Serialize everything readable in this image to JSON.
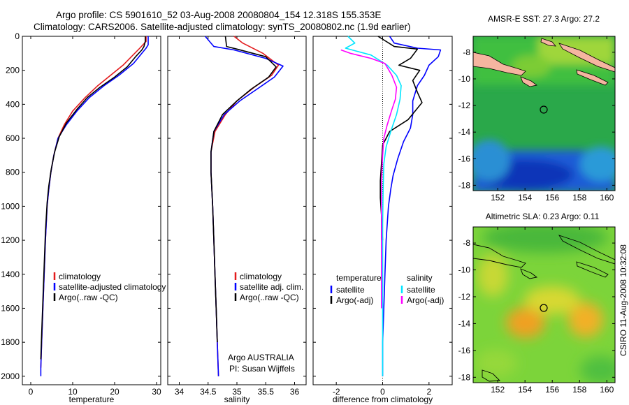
{
  "header": {
    "line1": "Argo profile: CS 5901610_52 03-Aug-2008 20080804_154 12.318S 155.353E",
    "line2": "Climatology: CARS2006. Satellite-adjusted climatology: synTS_20080802.nc (1.9d earlier)"
  },
  "colors": {
    "climatology": "#e31a1c",
    "satellite": "#0000ff",
    "argo": "#000000",
    "sat_salinity": "#00e5ff",
    "argo_salinity": "#ff00ff",
    "land": "#f5b5a0"
  },
  "footer": {
    "stamp": "CSIRO 11-Aug-2008 10:32:08",
    "credit_line1": "Argo AUSTRALIA",
    "credit_line2": "PI: Susan Wijffels"
  },
  "chart_data": [
    {
      "id": "temperature",
      "type": "line",
      "xlabel": "temperature",
      "ylabel": "",
      "xlim": [
        -2,
        31
      ],
      "ylim": [
        2050,
        0
      ],
      "xticks": [
        0,
        10,
        20,
        30
      ],
      "yticks": [
        0,
        200,
        400,
        600,
        800,
        1000,
        1200,
        1400,
        1600,
        1800,
        2000
      ],
      "legend": {
        "position": "lower-right",
        "entries": [
          {
            "label": "climatology",
            "color": "#e31a1c"
          },
          {
            "label": "satellite-adjusted climatology",
            "color": "#0000ff"
          },
          {
            "label": "Argo(..raw -QC)",
            "color": "#000000"
          }
        ]
      },
      "series": [
        {
          "name": "climatology",
          "color": "#e31a1c",
          "points": [
            [
              27.5,
              0
            ],
            [
              27.5,
              30
            ],
            [
              26,
              70
            ],
            [
              24,
              120
            ],
            [
              22,
              170
            ],
            [
              19,
              230
            ],
            [
              16,
              290
            ],
            [
              13,
              360
            ],
            [
              10,
              440
            ],
            [
              8,
              520
            ],
            [
              6.5,
              600
            ],
            [
              5.5,
              700
            ],
            [
              4.8,
              800
            ],
            [
              4.3,
              900
            ],
            [
              3.9,
              1000
            ],
            [
              3.5,
              1200
            ],
            [
              3.2,
              1400
            ],
            [
              2.9,
              1600
            ],
            [
              2.6,
              1800
            ],
            [
              2.4,
              1950
            ]
          ]
        },
        {
          "name": "satellite-adjusted climatology",
          "color": "#0000ff",
          "points": [
            [
              28,
              0
            ],
            [
              28,
              50
            ],
            [
              27.5,
              70
            ],
            [
              26.5,
              100
            ],
            [
              24.5,
              160
            ],
            [
              21,
              230
            ],
            [
              17.5,
              290
            ],
            [
              14,
              360
            ],
            [
              11,
              440
            ],
            [
              8.5,
              520
            ],
            [
              6.5,
              600
            ],
            [
              5.5,
              700
            ],
            [
              4.8,
              800
            ],
            [
              4.3,
              900
            ],
            [
              3.9,
              1000
            ],
            [
              3.5,
              1200
            ],
            [
              3.2,
              1400
            ],
            [
              2.9,
              1600
            ],
            [
              2.6,
              1800
            ],
            [
              2.4,
              1950
            ],
            [
              2.4,
              2000
            ]
          ]
        },
        {
          "name": "Argo",
          "color": "#000000",
          "points": [
            [
              27.3,
              0
            ],
            [
              27.3,
              30
            ],
            [
              27,
              60
            ],
            [
              26.5,
              80
            ],
            [
              25,
              120
            ],
            [
              23,
              180
            ],
            [
              20,
              240
            ],
            [
              16.5,
              300
            ],
            [
              13.5,
              360
            ],
            [
              11,
              430
            ],
            [
              8.5,
              510
            ],
            [
              6.8,
              590
            ],
            [
              5.7,
              680
            ],
            [
              4.9,
              780
            ],
            [
              4.3,
              880
            ],
            [
              3.9,
              980
            ],
            [
              3.5,
              1150
            ],
            [
              3.2,
              1350
            ],
            [
              2.9,
              1550
            ],
            [
              2.6,
              1750
            ],
            [
              2.4,
              1900
            ]
          ]
        }
      ]
    },
    {
      "id": "salinity",
      "type": "line",
      "xlabel": "salinity",
      "ylabel": "",
      "xlim": [
        33.8,
        36.2
      ],
      "ylim": [
        2050,
        0
      ],
      "xticks": [
        34,
        34.5,
        35,
        35.5,
        36
      ],
      "yticks": [
        0,
        200,
        400,
        600,
        800,
        1000,
        1200,
        1400,
        1600,
        1800,
        2000
      ],
      "legend": {
        "position": "lower-right",
        "entries": [
          {
            "label": "climatology",
            "color": "#e31a1c"
          },
          {
            "label": "satellite adj. clim.",
            "color": "#0000ff"
          },
          {
            "label": "Argo(..raw -QC)",
            "color": "#000000"
          }
        ]
      },
      "series": [
        {
          "name": "climatology",
          "color": "#e31a1c",
          "points": [
            [
              34.95,
              0
            ],
            [
              35.1,
              40
            ],
            [
              35.45,
              100
            ],
            [
              35.72,
              170
            ],
            [
              35.6,
              230
            ],
            [
              35.3,
              300
            ],
            [
              35.0,
              380
            ],
            [
              34.8,
              460
            ],
            [
              34.62,
              560
            ],
            [
              34.55,
              680
            ],
            [
              34.55,
              800
            ],
            [
              34.58,
              1000
            ],
            [
              34.6,
              1200
            ],
            [
              34.62,
              1400
            ],
            [
              34.64,
              1600
            ],
            [
              34.66,
              1800
            ],
            [
              34.68,
              2000
            ]
          ]
        },
        {
          "name": "satellite adj. clim.",
          "color": "#0000ff",
          "points": [
            [
              34.45,
              0
            ],
            [
              34.6,
              60
            ],
            [
              34.95,
              80
            ],
            [
              35.5,
              130
            ],
            [
              35.8,
              175
            ],
            [
              35.65,
              240
            ],
            [
              35.35,
              310
            ],
            [
              35.05,
              380
            ],
            [
              34.78,
              460
            ],
            [
              34.6,
              560
            ],
            [
              34.55,
              680
            ],
            [
              34.55,
              800
            ],
            [
              34.58,
              1000
            ],
            [
              34.6,
              1200
            ],
            [
              34.62,
              1400
            ],
            [
              34.64,
              1600
            ],
            [
              34.66,
              1800
            ],
            [
              34.68,
              2000
            ]
          ]
        },
        {
          "name": "Argo",
          "color": "#000000",
          "points": [
            [
              34.8,
              0
            ],
            [
              34.82,
              60
            ],
            [
              35.0,
              75
            ],
            [
              35.5,
              120
            ],
            [
              35.68,
              180
            ],
            [
              35.55,
              240
            ],
            [
              35.25,
              310
            ],
            [
              35.0,
              380
            ],
            [
              34.75,
              460
            ],
            [
              34.6,
              560
            ],
            [
              34.55,
              680
            ],
            [
              34.55,
              800
            ],
            [
              34.58,
              1000
            ],
            [
              34.6,
              1200
            ],
            [
              34.62,
              1400
            ],
            [
              34.64,
              1600
            ],
            [
              34.66,
              1800
            ]
          ]
        }
      ]
    },
    {
      "id": "difference",
      "type": "line",
      "xlabel": "difference from climatology",
      "ylabel": "",
      "xlim": [
        -3,
        3
      ],
      "ylim": [
        2050,
        0
      ],
      "xticks": [
        -2,
        0,
        2
      ],
      "yticks": [
        0,
        200,
        400,
        600,
        800,
        1000,
        1200,
        1400,
        1600,
        1800,
        2000
      ],
      "legend": {
        "position": "lower-center",
        "col1_title": "temperature",
        "col2_title": "salinity",
        "entries": [
          {
            "label": "satellite",
            "color": "#0000ff"
          },
          {
            "label": "Argo(-adj)",
            "color": "#000000"
          },
          {
            "label": "satellite",
            "color": "#00e5ff"
          },
          {
            "label": "Argo(-adj)",
            "color": "#ff00ff"
          }
        ]
      },
      "series": [
        {
          "name": "temperature satellite",
          "color": "#0000ff",
          "points": [
            [
              0.3,
              0
            ],
            [
              0.5,
              40
            ],
            [
              1.5,
              70
            ],
            [
              2.5,
              80
            ],
            [
              2.4,
              120
            ],
            [
              2,
              170
            ],
            [
              1.8,
              230
            ],
            [
              1.5,
              290
            ],
            [
              1.3,
              380
            ],
            [
              1.3,
              460
            ],
            [
              1.2,
              540
            ],
            [
              0.9,
              620
            ],
            [
              0.65,
              720
            ],
            [
              0.45,
              820
            ],
            [
              0.35,
              900
            ],
            [
              0.25,
              1000
            ],
            [
              0.15,
              1200
            ],
            [
              0.1,
              1400
            ],
            [
              0.05,
              1600
            ],
            [
              0,
              1800
            ],
            [
              0,
              2000
            ]
          ]
        },
        {
          "name": "temperature Argo",
          "color": "#000000",
          "points": [
            [
              -0.2,
              0
            ],
            [
              0.5,
              60
            ],
            [
              1.5,
              75
            ],
            [
              1.2,
              130
            ],
            [
              0.7,
              170
            ],
            [
              1.6,
              200
            ],
            [
              1.3,
              260
            ],
            [
              1.5,
              330
            ],
            [
              1.7,
              390
            ],
            [
              1.4,
              440
            ],
            [
              1.1,
              490
            ],
            [
              0.3,
              560
            ],
            [
              0,
              640
            ],
            [
              -0.05,
              750
            ],
            [
              -0.1,
              850
            ],
            [
              -0.1,
              950
            ],
            [
              -0.05,
              1050
            ],
            [
              0,
              1200
            ]
          ]
        },
        {
          "name": "salinity satellite",
          "color": "#00e5ff",
          "points": [
            [
              -1.5,
              0
            ],
            [
              -1.2,
              40
            ],
            [
              -1.6,
              70
            ],
            [
              -0.5,
              110
            ],
            [
              0.2,
              170
            ],
            [
              0.6,
              230
            ],
            [
              0.8,
              290
            ],
            [
              0.75,
              370
            ],
            [
              0.6,
              460
            ],
            [
              0.35,
              560
            ],
            [
              0.15,
              650
            ],
            [
              0.05,
              750
            ],
            [
              0.02,
              900
            ],
            [
              0,
              1100
            ],
            [
              0,
              1400
            ],
            [
              0,
              1700
            ],
            [
              0,
              2000
            ]
          ]
        },
        {
          "name": "salinity Argo",
          "color": "#ff00ff",
          "points": [
            [
              -1.8,
              80
            ],
            [
              -1.4,
              100
            ],
            [
              -0.5,
              130
            ],
            [
              0.1,
              160
            ],
            [
              0.4,
              230
            ],
            [
              0.6,
              300
            ],
            [
              0.55,
              370
            ],
            [
              0.4,
              430
            ],
            [
              0.2,
              520
            ],
            [
              0.05,
              600
            ],
            [
              0,
              700
            ],
            [
              -0.05,
              850
            ],
            [
              -0.05,
              1000
            ],
            [
              -0.05,
              1300
            ],
            [
              -0.05,
              1600
            ]
          ]
        }
      ]
    },
    {
      "id": "sst_map",
      "type": "heatmap",
      "title": "AMSR-E SST: 27.3 Argo: 27.2",
      "xlim": [
        150.2,
        160.6
      ],
      "ylim": [
        -18.4,
        -6.8
      ],
      "xticks": [
        152,
        154,
        156,
        158,
        160
      ],
      "yticks": [
        -8,
        -10,
        -12,
        -14,
        -16,
        -18
      ],
      "marker": {
        "lon": 155.35,
        "lat": -12.32
      },
      "value_range": "cool-blue south, warm-green north, yellow in the north-east"
    },
    {
      "id": "sla_map",
      "type": "heatmap",
      "title": "Altimetric SLA: 0.23 Argo: 0.11",
      "xlim": [
        150.2,
        160.6
      ],
      "ylim": [
        -18.4,
        -6.8
      ],
      "xticks": [
        152,
        154,
        156,
        158,
        160
      ],
      "yticks": [
        -8,
        -10,
        -12,
        -14,
        -16,
        -18
      ],
      "marker": {
        "lon": 155.35,
        "lat": -12.32
      },
      "value_range": "green background with yellow/orange eddies"
    }
  ]
}
